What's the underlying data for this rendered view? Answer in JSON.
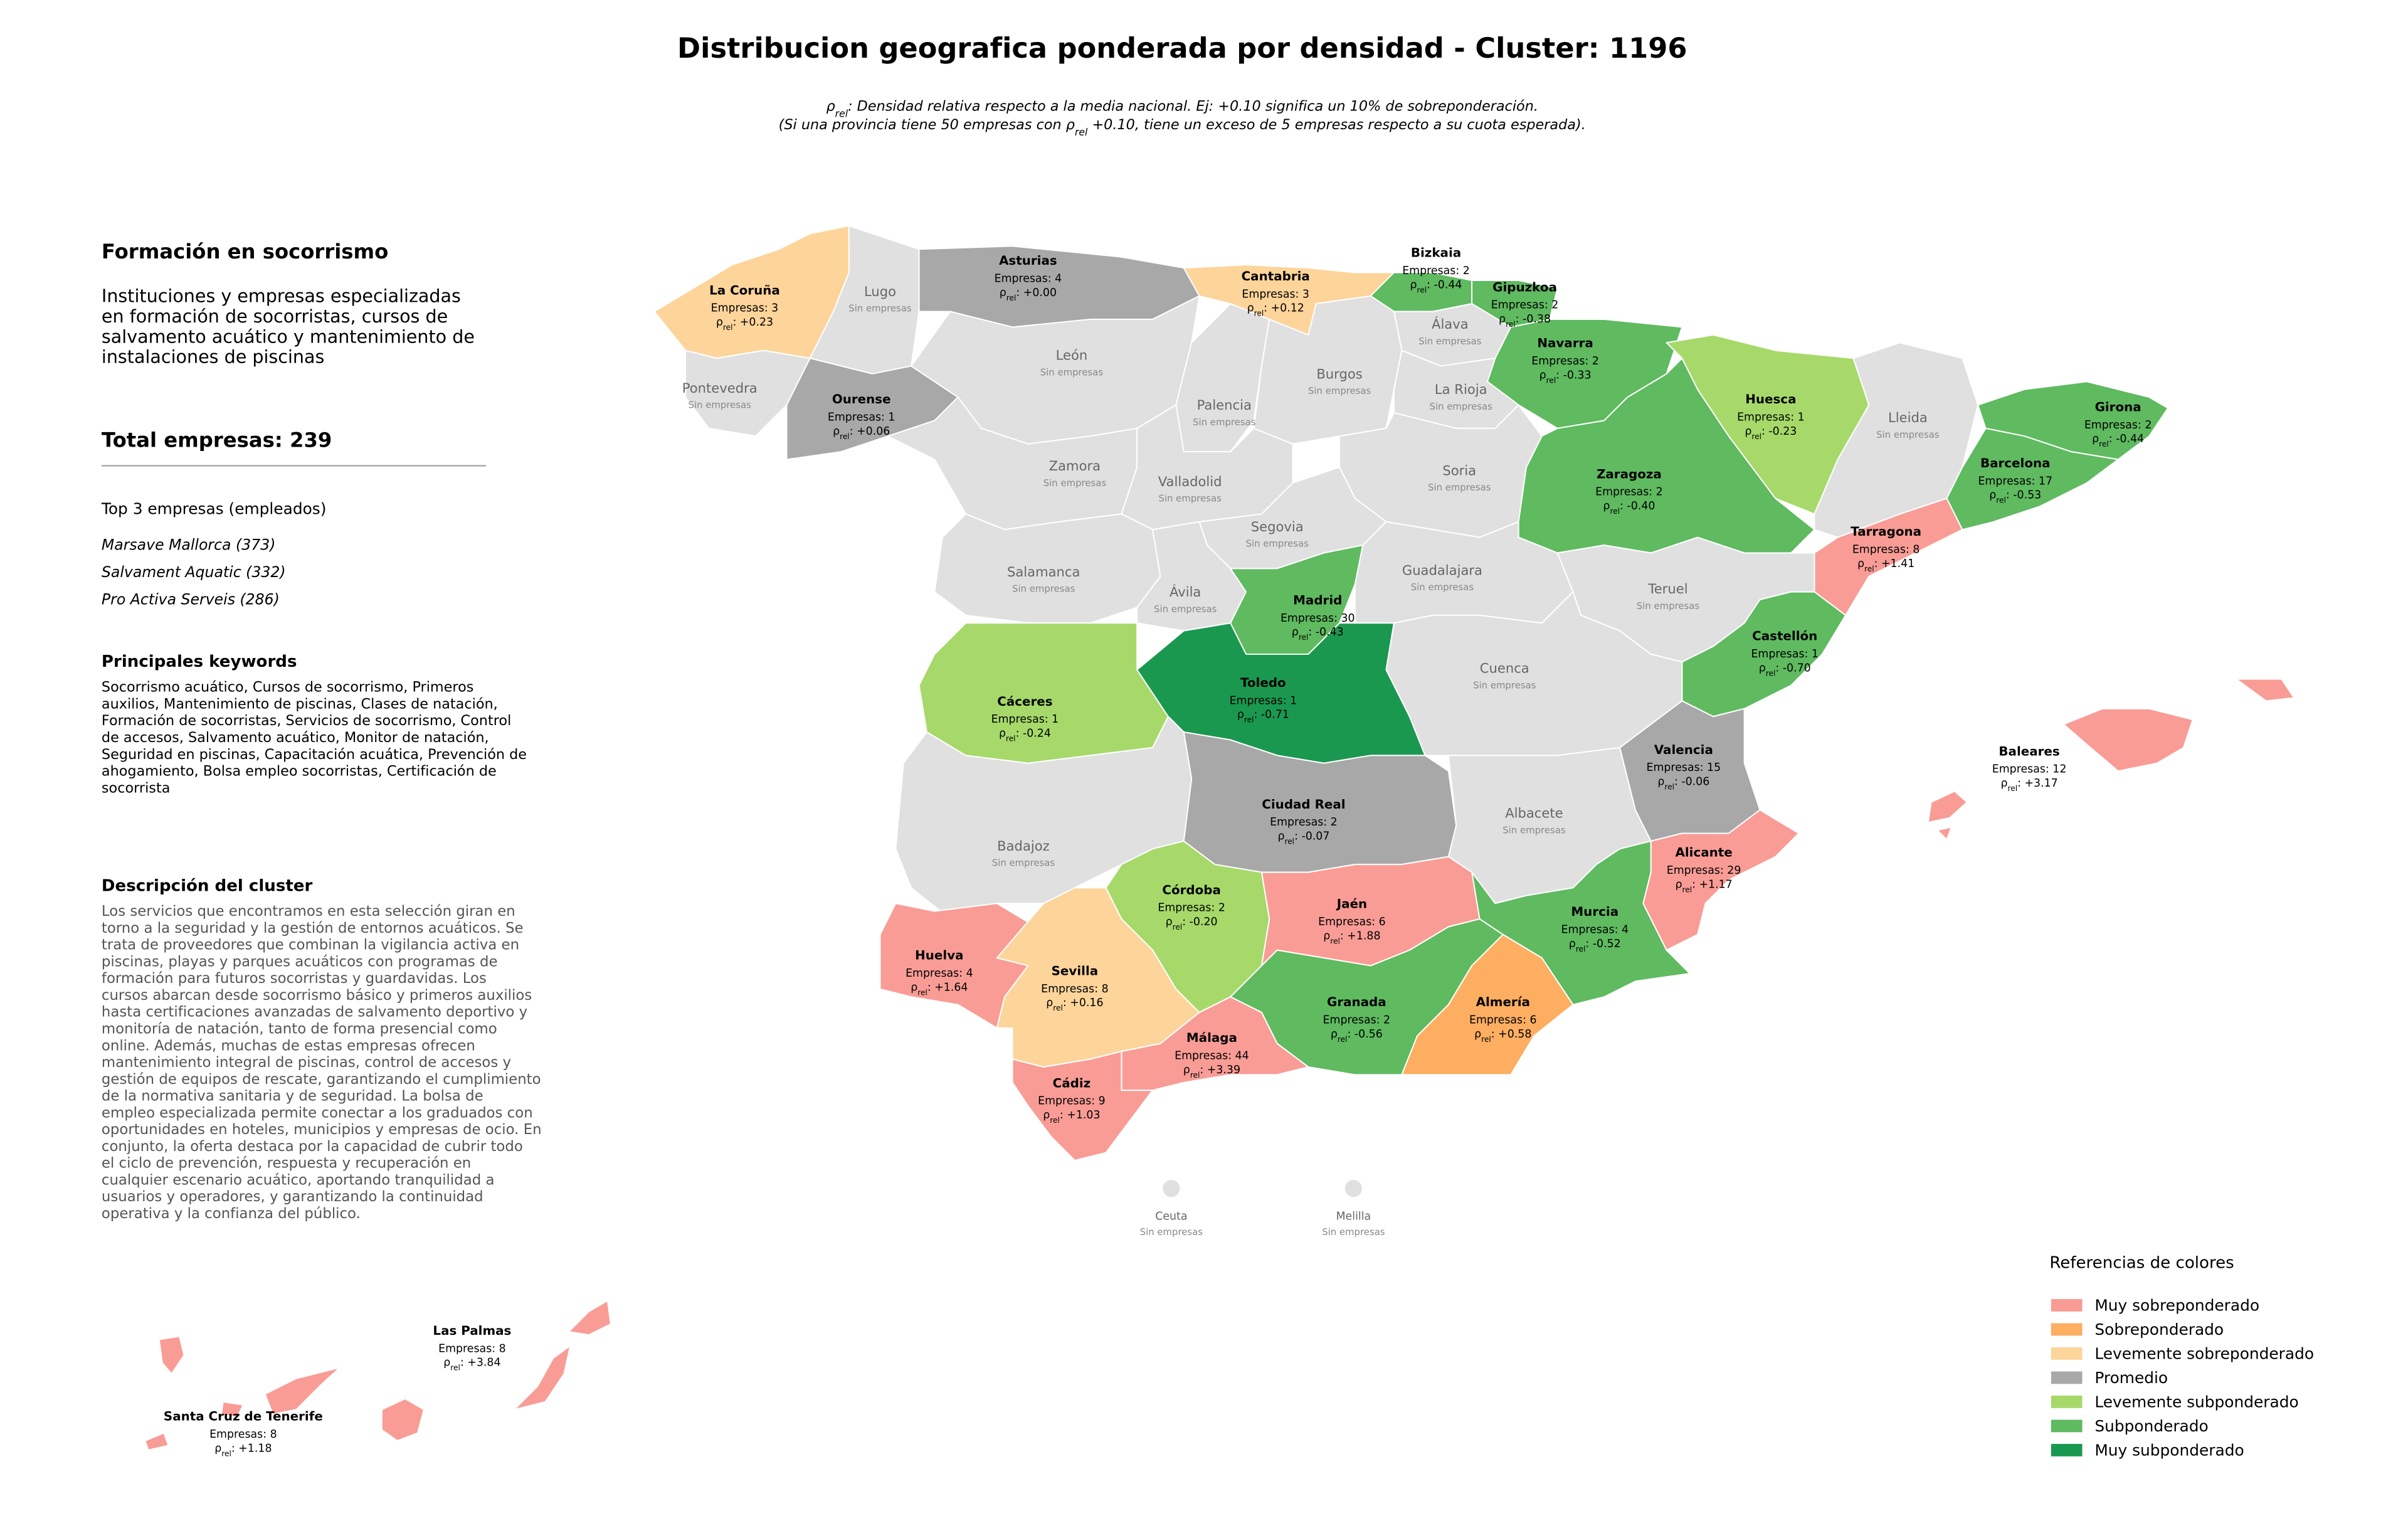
{
  "title": "Distribucion geografica ponderada por densidad - Cluster: 1196",
  "subtitle": [
    [
      "ρ",
      "rel",
      ": Densidad relativa respecto a la media nacional. Ej: +0.10 significa un 10% de sobreponderación."
    ],
    [
      "(Si una provincia tiene 50 empresas con ρ",
      "rel",
      " +0.10, tiene un exceso de 5 empresas respecto a su cuota esperada)."
    ]
  ],
  "sidebar": {
    "heading": "Formación en socorrismo",
    "description_lines": [
      "Instituciones y empresas especializadas",
      "en formación de socorristas, cursos de",
      "salvamento acuático y mantenimiento de",
      "instalaciones de piscinas"
    ],
    "total": "Total empresas: 239",
    "top_title": "Top 3 empresas (empleados)",
    "top": [
      "Marsave Mallorca (373)",
      "Salvament Aquatic (332)",
      "Pro Activa Serveis (286)"
    ],
    "keywords_title": "Principales keywords",
    "keywords_lines": [
      "Socorrismo acuático, Cursos de socorrismo, Primeros",
      "auxilios, Mantenimiento de piscinas, Clases de natación,",
      "Formación de socorristas, Servicios de socorrismo, Control",
      "de accesos, Salvamento acuático, Monitor de natación,",
      "Seguridad en piscinas, Capacitación acuática, Prevención de",
      "ahogamiento, Bolsa empleo socorristas, Certificación de",
      "socorrista"
    ],
    "cluster_title": "Descripción del cluster",
    "cluster_lines": [
      "Los servicios que encontramos en esta selección giran en",
      "torno a la seguridad y la gestión de entornos acuáticos. Se",
      "trata de proveedores que combinan la vigilancia activa en",
      "piscinas, playas y parques acuáticos con programas de",
      "formación para futuros socorristas y guardavidas. Los",
      "cursos abarcan desde socorrismo básico y primeros auxilios",
      "hasta certificaciones avanzadas de salvamento deportivo y",
      "monitoría de natación, tanto de forma presencial como",
      "online. Además, muchas de estas empresas ofrecen",
      "mantenimiento integral de piscinas, control de accesos y",
      "gestión de equipos de rescate, garantizando el cumplimiento",
      "de la normativa sanitaria y de seguridad. La bolsa de",
      "empleo especializada permite conectar a los graduados con",
      "oportunidades en hoteles, municipios y empresas de ocio. En",
      "conjunto, la oferta destaca por la capacidad de cubrir todo",
      "el ciclo de prevención, respuesta y recuperación en",
      "cualquier escenario acuático, aportando tranquilidad a",
      "usuarios y operadores, y garantizando la continuidad",
      "operativa y la confianza del público."
    ]
  },
  "provinces": [
    {
      "name": "La Coruña",
      "stats": "Empresas: 3",
      "rho": [
        "ρ",
        "rel",
        ": +0.23"
      ],
      "color": "#fdd49a"
    },
    {
      "name": "Lugo",
      "stats": "Sin empresas",
      "color": "#e0e0e0"
    },
    {
      "name": "Asturias",
      "stats": "Empresas: 4",
      "rho": [
        "ρ",
        "rel",
        ": +0.00"
      ],
      "color": "#a8a8a8"
    },
    {
      "name": "Cantabria",
      "stats": "Empresas: 3",
      "rho": [
        "ρ",
        "rel",
        ": +0.12"
      ],
      "color": "#fdd49a"
    },
    {
      "name": "Bizkaia",
      "stats": "Empresas: 2",
      "rho": [
        "ρ",
        "rel",
        ": -0.44"
      ],
      "color": "#5fba60"
    },
    {
      "name": "Gipuzkoa",
      "stats": "Empresas: 2",
      "rho": [
        "ρ",
        "rel",
        ": -0.38"
      ],
      "color": "#5fba60"
    },
    {
      "name": "Álava",
      "stats": "Sin empresas",
      "color": "#e0e0e0"
    },
    {
      "name": "Navarra",
      "stats": "Empresas: 2",
      "rho": [
        "ρ",
        "rel",
        ": -0.33"
      ],
      "color": "#5fba60"
    },
    {
      "name": "Pontevedra",
      "stats": "Sin empresas",
      "color": "#e0e0e0"
    },
    {
      "name": "Ourense",
      "stats": "Empresas: 1",
      "rho": [
        "ρ",
        "rel",
        ": +0.06"
      ],
      "color": "#a8a8a8"
    },
    {
      "name": "León",
      "stats": "Sin empresas",
      "color": "#e0e0e0"
    },
    {
      "name": "Palencia",
      "stats": "Sin empresas",
      "color": "#e0e0e0"
    },
    {
      "name": "Burgos",
      "stats": "Sin empresas",
      "color": "#e0e0e0"
    },
    {
      "name": "La Rioja",
      "stats": "Sin empresas",
      "color": "#e0e0e0"
    },
    {
      "name": "Zamora",
      "stats": "Sin empresas",
      "color": "#e0e0e0"
    },
    {
      "name": "Valladolid",
      "stats": "Sin empresas",
      "color": "#e0e0e0"
    },
    {
      "name": "Soria",
      "stats": "Sin empresas",
      "color": "#e0e0e0"
    },
    {
      "name": "Zaragoza",
      "stats": "Empresas: 2",
      "rho": [
        "ρ",
        "rel",
        ": -0.40"
      ],
      "color": "#5fba60"
    },
    {
      "name": "Huesca",
      "stats": "Empresas: 1",
      "rho": [
        "ρ",
        "rel",
        ": -0.23"
      ],
      "color": "#a6d96a"
    },
    {
      "name": "Lleida",
      "stats": "Sin empresas",
      "color": "#e0e0e0"
    },
    {
      "name": "Girona",
      "stats": "Empresas: 2",
      "rho": [
        "ρ",
        "rel",
        ": -0.44"
      ],
      "color": "#5fba60"
    },
    {
      "name": "Barcelona",
      "stats": "Empresas: 17",
      "rho": [
        "ρ",
        "rel",
        ": -0.53"
      ],
      "color": "#5fba60"
    },
    {
      "name": "Tarragona",
      "stats": "Empresas: 8",
      "rho": [
        "ρ",
        "rel",
        ": +1.41"
      ],
      "color": "#f99c96"
    },
    {
      "name": "Segovia",
      "stats": "Sin empresas",
      "color": "#e0e0e0"
    },
    {
      "name": "Salamanca",
      "stats": "Sin empresas",
      "color": "#e0e0e0"
    },
    {
      "name": "Ávila",
      "stats": "Sin empresas",
      "color": "#e0e0e0"
    },
    {
      "name": "Madrid",
      "stats": "Empresas: 30",
      "rho": [
        "ρ",
        "rel",
        ": -0.43"
      ],
      "color": "#5fba60"
    },
    {
      "name": "Guadalajara",
      "stats": "Sin empresas",
      "color": "#e0e0e0"
    },
    {
      "name": "Teruel",
      "stats": "Sin empresas",
      "color": "#e0e0e0"
    },
    {
      "name": "Castellón",
      "stats": "Empresas: 1",
      "rho": [
        "ρ",
        "rel",
        ": -0.70"
      ],
      "color": "#5fba60"
    },
    {
      "name": "Cáceres",
      "stats": "Empresas: 1",
      "rho": [
        "ρ",
        "rel",
        ": -0.24"
      ],
      "color": "#a6d96a"
    },
    {
      "name": "Toledo",
      "stats": "Empresas: 1",
      "rho": [
        "ρ",
        "rel",
        ": -0.71"
      ],
      "color": "#1a9850"
    },
    {
      "name": "Cuenca",
      "stats": "Sin empresas",
      "color": "#e0e0e0"
    },
    {
      "name": "Valencia",
      "stats": "Empresas: 15",
      "rho": [
        "ρ",
        "rel",
        ": -0.06"
      ],
      "color": "#a8a8a8"
    },
    {
      "name": "Ciudad Real",
      "stats": "Empresas: 2",
      "rho": [
        "ρ",
        "rel",
        ": -0.07"
      ],
      "color": "#a8a8a8"
    },
    {
      "name": "Albacete",
      "stats": "Sin empresas",
      "color": "#e0e0e0"
    },
    {
      "name": "Badajoz",
      "stats": "Sin empresas",
      "color": "#e0e0e0"
    },
    {
      "name": "Alicante",
      "stats": "Empresas: 29",
      "rho": [
        "ρ",
        "rel",
        ": +1.17"
      ],
      "color": "#f99c96"
    },
    {
      "name": "Murcia",
      "stats": "Empresas: 4",
      "rho": [
        "ρ",
        "rel",
        ": -0.52"
      ],
      "color": "#5fba60"
    },
    {
      "name": "Córdoba",
      "stats": "Empresas: 2",
      "rho": [
        "ρ",
        "rel",
        ": -0.20"
      ],
      "color": "#a6d96a"
    },
    {
      "name": "Jaén",
      "stats": "Empresas: 6",
      "rho": [
        "ρ",
        "rel",
        ": +1.88"
      ],
      "color": "#f99c96"
    },
    {
      "name": "Huelva",
      "stats": "Empresas: 4",
      "rho": [
        "ρ",
        "rel",
        ": +1.64"
      ],
      "color": "#f99c96"
    },
    {
      "name": "Sevilla",
      "stats": "Empresas: 8",
      "rho": [
        "ρ",
        "rel",
        ": +0.16"
      ],
      "color": "#fdd49a"
    },
    {
      "name": "Granada",
      "stats": "Empresas: 2",
      "rho": [
        "ρ",
        "rel",
        ": -0.56"
      ],
      "color": "#5fba60"
    },
    {
      "name": "Almería",
      "stats": "Empresas: 6",
      "rho": [
        "ρ",
        "rel",
        ": +0.58"
      ],
      "color": "#fdae61"
    },
    {
      "name": "Málaga",
      "stats": "Empresas: 44",
      "rho": [
        "ρ",
        "rel",
        ": +3.39"
      ],
      "color": "#f99c96"
    },
    {
      "name": "Cádiz",
      "stats": "Empresas: 9",
      "rho": [
        "ρ",
        "rel",
        ": +1.03"
      ],
      "color": "#f99c96"
    },
    {
      "name": "Baleares",
      "stats": "Empresas: 12",
      "rho": [
        "ρ",
        "rel",
        ": +3.17"
      ],
      "color": "#f99c96"
    },
    {
      "name": "Las Palmas",
      "stats": "Empresas: 8",
      "rho": [
        "ρ",
        "rel",
        ": +3.84"
      ],
      "color": "#f99c96"
    },
    {
      "name": "Santa Cruz de Tenerife",
      "stats": "Empresas: 8",
      "rho": [
        "ρ",
        "rel",
        ": +1.18"
      ],
      "color": "#f99c96"
    },
    {
      "name": "Ceuta",
      "stats": "Sin empresas",
      "color": "#e0e0e0"
    },
    {
      "name": "Melilla",
      "stats": "Sin empresas",
      "color": "#e0e0e0"
    }
  ],
  "legend": {
    "title": "Referencias de colores",
    "items": [
      {
        "label": "Muy sobreponderado",
        "color": "#f99c96"
      },
      {
        "label": "Sobreponderado",
        "color": "#fdae61"
      },
      {
        "label": "Levemente sobreponderado",
        "color": "#fdd49a"
      },
      {
        "label": "Promedio",
        "color": "#a8a8a8"
      },
      {
        "label": "Levemente subponderado",
        "color": "#a6d96a"
      },
      {
        "label": "Subponderado",
        "color": "#5fba60"
      },
      {
        "label": "Muy subponderado",
        "color": "#1a9850"
      }
    ]
  }
}
